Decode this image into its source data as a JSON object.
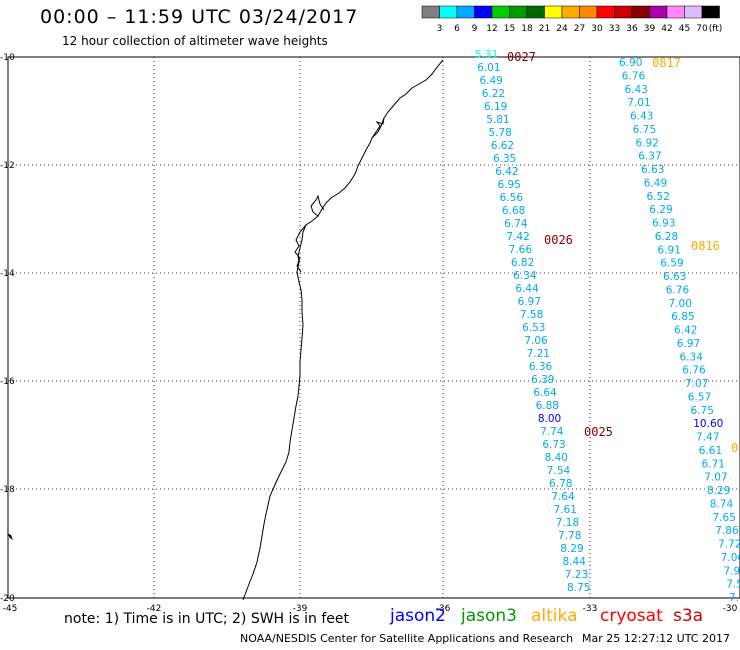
{
  "header": {
    "title": "00:00 – 11:59 UTC 03/24/2017",
    "subtitle": "12 hour collection of altimeter wave heights"
  },
  "legend": {
    "colors": [
      "#808080",
      "#00ffff",
      "#00aaff",
      "#0000ff",
      "#00cc00",
      "#009900",
      "#006600",
      "#ffff00",
      "#ffaa00",
      "#ff8800",
      "#ff0000",
      "#cc0000",
      "#880000",
      "#aa00aa",
      "#ff88ff",
      "#ddbbff",
      "#000000"
    ],
    "labels": [
      "3",
      "6",
      "9",
      "12",
      "15",
      "18",
      "21",
      "24",
      "27",
      "30",
      "33",
      "36",
      "39",
      "42",
      "45",
      "70",
      "(ft)"
    ]
  },
  "axes": {
    "x_labels": [
      "-45",
      "-42",
      "-39",
      "-36",
      "-33",
      "-30"
    ],
    "y_labels": [
      "-10",
      "-12",
      "-14",
      "-16",
      "-18",
      "-20"
    ]
  },
  "tracks": [
    {
      "id": "0027",
      "color": "#880000",
      "values": [
        "5.31",
        "6.01",
        "6.49",
        "6.22",
        "6.19",
        "5.81",
        "5.78",
        "6.62",
        "6.35",
        "6.42",
        "6.95",
        "6.56",
        "6.68",
        "6.74",
        "7.42",
        "7.66",
        "6.82",
        "6.34",
        "6.44",
        "6.97",
        "7.58",
        "6.53",
        "7.06",
        "7.21",
        "6.36",
        "6.39",
        "6.64",
        "6.88",
        "8.00",
        "7.74",
        "6.73",
        "8.40",
        "7.54",
        "6.78",
        "7.64",
        "7.61",
        "7.18",
        "7.78",
        "8.29",
        "8.44",
        "7.23",
        "8.75"
      ],
      "value_colors": {
        "0": "#00ffff",
        "28": "#0000ff"
      }
    },
    {
      "id": "0026",
      "color": "#880000"
    },
    {
      "id": "0025",
      "color": "#880000"
    },
    {
      "id": "0817",
      "color": "#ffaa00",
      "values": [
        "6.90",
        "6.76",
        "6.43",
        "7.01",
        "6.43",
        "6.75",
        "6.92",
        "6.37",
        "6.63",
        "6.49",
        "6.52",
        "6.29",
        "6.93",
        "6.28",
        "6.91",
        "6.59",
        "6.63",
        "6.76",
        "7.00",
        "6.85",
        "6.42",
        "6.97",
        "6.34",
        "6.76",
        "7.07",
        "6.57",
        "6.75",
        "10.60",
        "7.47",
        "6.61",
        "6.71",
        "7.07",
        "8.29",
        "8.74",
        "7.65",
        "7.86",
        "7.72",
        "7.06",
        "7.9",
        "7.5",
        "7."
      ],
      "value_colors": {
        "27": "#0000ff"
      }
    },
    {
      "id": "0816",
      "color": "#ffaa00"
    },
    {
      "id": "0",
      "color": "#ffaa00"
    }
  ],
  "footer": {
    "note": "note: 1) Time is in UTC; 2) SWH is in feet",
    "satellites": [
      {
        "name": "jason2",
        "color": "#0000ff"
      },
      {
        "name": "jason3",
        "color": "#009900"
      },
      {
        "name": "altika",
        "color": "#ffaa00"
      },
      {
        "name": "cryosat",
        "color": "#ff0000"
      },
      {
        "name": "s3a",
        "color": "#cc0000"
      }
    ],
    "credit": "NOAA/NESDIS Center for Satellite Applications and Research",
    "generated": "Mar 25 12:27:12 UTC 2017"
  }
}
